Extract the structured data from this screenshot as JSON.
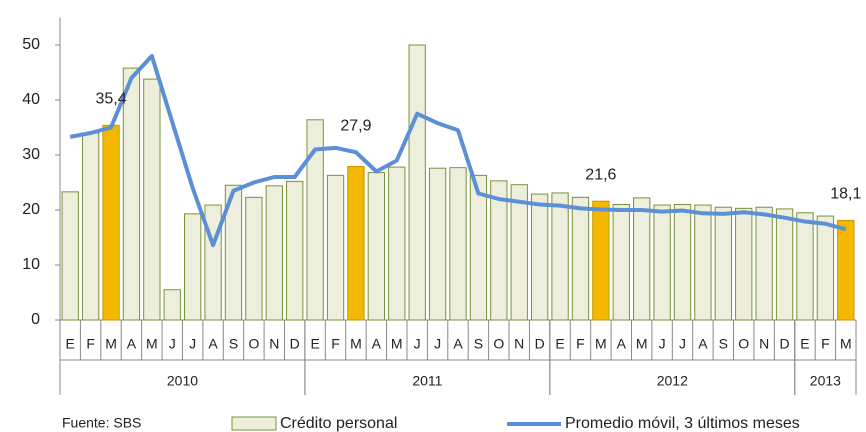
{
  "chart_data": {
    "type": "bar-line",
    "categories": [
      "E",
      "F",
      "M",
      "A",
      "M",
      "J",
      "J",
      "A",
      "S",
      "O",
      "N",
      "D",
      "E",
      "F",
      "M",
      "A",
      "M",
      "J",
      "J",
      "A",
      "S",
      "O",
      "N",
      "D",
      "E",
      "F",
      "M",
      "A",
      "M",
      "J",
      "J",
      "A",
      "S",
      "O",
      "N",
      "D",
      "E",
      "F",
      "M"
    ],
    "year_groups": [
      {
        "label": "2010",
        "months": 12
      },
      {
        "label": "2011",
        "months": 12
      },
      {
        "label": "2012",
        "months": 12
      },
      {
        "label": "2013",
        "months": 3
      }
    ],
    "series": [
      {
        "name": "Crédito personal",
        "kind": "bar",
        "color": "#eeeedc",
        "edge": "#77933c",
        "values": [
          23.3,
          34,
          35.4,
          45.8,
          43.8,
          5.5,
          19.3,
          20.9,
          24.5,
          22.3,
          24.4,
          25.2,
          36.4,
          26.3,
          27.9,
          26.8,
          27.8,
          50,
          27.6,
          27.7,
          26.3,
          25.3,
          24.6,
          22.9,
          23.1,
          22.3,
          21.6,
          21,
          22.2,
          20.9,
          21,
          20.9,
          20.5,
          20.3,
          20.5,
          20.2,
          19.5,
          18.9,
          18.1
        ],
        "value_labels": [
          null,
          null,
          "35,4",
          null,
          null,
          null,
          null,
          null,
          null,
          null,
          null,
          null,
          null,
          null,
          "27,9",
          null,
          null,
          null,
          null,
          null,
          null,
          null,
          null,
          null,
          null,
          null,
          "21,6",
          null,
          null,
          null,
          null,
          null,
          null,
          null,
          null,
          null,
          null,
          null,
          "18,1"
        ],
        "highlight_color": "#f5b800"
      },
      {
        "name": "Promedio móvil, 3 últimos meses",
        "kind": "line",
        "color": "#5b8fd6",
        "values": [
          33.3,
          34,
          35,
          44,
          48,
          36,
          24,
          13.6,
          23.5,
          25,
          26,
          26,
          31,
          31.3,
          30.5,
          27,
          29,
          37.5,
          35.8,
          34.5,
          23,
          22,
          21.5,
          21,
          20.8,
          20.3,
          20.1,
          20,
          20,
          19.7,
          19.9,
          19.4,
          19.3,
          19.6,
          19.2,
          18.6,
          17.9,
          17.5,
          16.5
        ]
      }
    ],
    "ylim": [
      0,
      55
    ],
    "yticks": [
      0,
      10,
      20,
      30,
      40,
      50
    ],
    "note": "Fuente: SBS"
  }
}
